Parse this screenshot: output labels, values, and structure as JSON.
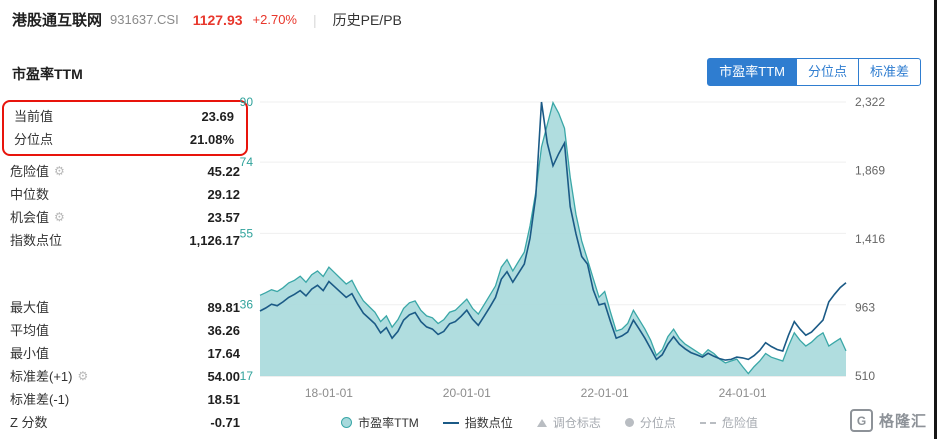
{
  "header": {
    "title": "港股通互联网",
    "code": "931637.CSI",
    "price": "1127.93",
    "change": "+2.70%",
    "separator": "|",
    "menu": "历史PE/PB"
  },
  "tabs": [
    {
      "label": "市盈率TTM",
      "active": true
    },
    {
      "label": "分位点",
      "active": false
    },
    {
      "label": "标准差",
      "active": false
    }
  ],
  "panel": {
    "title": "市盈率TTM",
    "highlight_rows": [
      {
        "label": "当前值",
        "value": "23.69"
      },
      {
        "label": "分位点",
        "value": "21.08%"
      }
    ],
    "rows": [
      {
        "label": "危险值",
        "gear": true,
        "value": "45.22"
      },
      {
        "label": "中位数",
        "gear": false,
        "value": "29.12"
      },
      {
        "label": "机会值",
        "gear": true,
        "value": "23.57"
      },
      {
        "label": "指数点位",
        "gear": false,
        "value": "1,126.17"
      }
    ],
    "rows2": [
      {
        "label": "最大值",
        "gear": false,
        "value": "89.81"
      },
      {
        "label": "平均值",
        "gear": false,
        "value": "36.26"
      },
      {
        "label": "最小值",
        "gear": false,
        "value": "17.64"
      },
      {
        "label": "标准差(+1)",
        "gear": true,
        "value": "54.00"
      },
      {
        "label": "标准差(-1)",
        "gear": false,
        "value": "18.51"
      },
      {
        "label": "Z 分数",
        "gear": false,
        "value": "-0.71"
      }
    ],
    "highlight_border_color": "#e8140c"
  },
  "chart_data": {
    "type": "line",
    "x_start": "2017-01",
    "x_end": "2025-07",
    "x_ticks": [
      {
        "i": 12,
        "label": "18-01-01"
      },
      {
        "i": 36,
        "label": "20-01-01"
      },
      {
        "i": 60,
        "label": "22-01-01"
      },
      {
        "i": 84,
        "label": "24-01-01"
      }
    ],
    "y_left": {
      "min": 17,
      "max": 90,
      "ticks": [
        90,
        74,
        55,
        36,
        17
      ]
    },
    "y_right": {
      "min": 510,
      "max": 2322,
      "ticks": [
        {
          "v": 2322,
          "label": "2,322"
        },
        {
          "v": 1869,
          "label": "1,869"
        },
        {
          "v": 1416,
          "label": "1,416"
        },
        {
          "v": 963,
          "label": "963"
        },
        {
          "v": 510,
          "label": "510"
        }
      ]
    },
    "grid": true,
    "legend_position": "bottom",
    "series": [
      {
        "name": "市盈率TTM",
        "axis": "left",
        "style": "area",
        "values": [
          38.5,
          39.2,
          40,
          39.5,
          40.5,
          41.8,
          42.5,
          43.6,
          42,
          44,
          45,
          43.5,
          46,
          44.5,
          43,
          41.5,
          42.5,
          39.5,
          37,
          35.5,
          34,
          31.5,
          33,
          30,
          32,
          35,
          36.5,
          37,
          34.5,
          33,
          32.5,
          31,
          32,
          34,
          34.5,
          36,
          37.5,
          35,
          33.5,
          36,
          38.5,
          41,
          46,
          48,
          45,
          47.5,
          50,
          57,
          66,
          78,
          84,
          89.81,
          87,
          83,
          70,
          60,
          53,
          48,
          43,
          38,
          39.5,
          34,
          29,
          29.5,
          31,
          34.5,
          32,
          29.5,
          26.5,
          22.5,
          24,
          27.5,
          29.5,
          27,
          25.5,
          24.5,
          23.5,
          22.5,
          24,
          23,
          21.5,
          20.5,
          21,
          21.5,
          19.5,
          17.64,
          19.5,
          21,
          23,
          22,
          21.5,
          21,
          25,
          28.5,
          26.5,
          25,
          26,
          27.5,
          28.5,
          25,
          26,
          27,
          23.69
        ]
      },
      {
        "name": "指数点位",
        "axis": "right",
        "style": "line",
        "values": [
          940,
          960,
          985,
          975,
          1000,
          1030,
          1050,
          1075,
          1040,
          1085,
          1110,
          1075,
          1135,
          1100,
          1065,
          1030,
          1055,
          985,
          925,
          890,
          855,
          795,
          830,
          760,
          805,
          880,
          915,
          930,
          870,
          835,
          820,
          785,
          805,
          855,
          870,
          905,
          945,
          885,
          845,
          905,
          965,
          1030,
          1150,
          1200,
          1130,
          1190,
          1250,
          1420,
          1700,
          2322,
          2050,
          1900,
          1980,
          2050,
          1630,
          1450,
          1300,
          1250,
          1080,
          980,
          990,
          870,
          760,
          775,
          800,
          880,
          820,
          760,
          690,
          620,
          650,
          720,
          770,
          720,
          690,
          665,
          650,
          635,
          660,
          640,
          625,
          615,
          620,
          635,
          630,
          620,
          645,
          680,
          730,
          705,
          685,
          675,
          780,
          870,
          820,
          780,
          800,
          840,
          880,
          1000,
          1050,
          1095,
          1126.17
        ]
      }
    ],
    "colors": {
      "pe_line": "#3aa7a7",
      "pe_fill": "#a7d9dc",
      "index_line": "#1b5a86",
      "axis_left_label": "#2fa29b",
      "axis_right_label": "#666666",
      "axis_x_label": "#8c8c8c",
      "grid_line": "#efefef"
    }
  },
  "legend": {
    "items": [
      {
        "label": "市盈率TTM",
        "marker": "dot-teal",
        "muted": false
      },
      {
        "label": "指数点位",
        "marker": "line-navy",
        "muted": false
      },
      {
        "label": "调仓标志",
        "marker": "triangle",
        "muted": true
      },
      {
        "label": "分位点",
        "marker": "dot-gray",
        "muted": true
      },
      {
        "label": "危险值",
        "marker": "dash-gray",
        "muted": true
      }
    ],
    "muted_color": "#b9bdc2"
  },
  "watermark": {
    "logo": "G",
    "text": "格隆汇"
  },
  "accent_colors": {
    "price_red": "#e8372c",
    "tab_blue": "#2f7dd0"
  }
}
